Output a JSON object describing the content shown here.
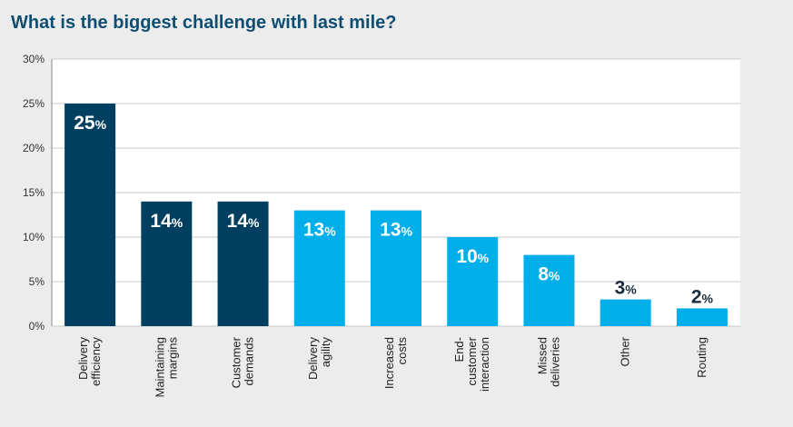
{
  "title": "What is the biggest challenge with last mile?",
  "colors": {
    "dark": "#003f5f",
    "light": "#00aeea",
    "inside_text": "#ffffff",
    "outside_text": "#1a2b3c",
    "plot_bg": "#ffffff",
    "grid": "#c8c8c8"
  },
  "chart_data": {
    "type": "bar",
    "title": "What is the biggest challenge with last mile?",
    "xlabel": "",
    "ylabel": "",
    "ylim": [
      0,
      30
    ],
    "yticks": [
      "0%",
      "5%",
      "10%",
      "15%",
      "20%",
      "25%",
      "30%"
    ],
    "grid": true,
    "categories": [
      [
        "Delivery",
        "efficiency"
      ],
      [
        "Maintaining",
        "margins"
      ],
      [
        "Customer",
        "demands"
      ],
      [
        "Delivery",
        "agility"
      ],
      [
        "Increased",
        "costs"
      ],
      [
        "End-",
        "customer",
        "interaction"
      ],
      [
        "Missed",
        "deliveries"
      ],
      [
        "Other"
      ],
      [
        "Routing"
      ]
    ],
    "values": [
      25,
      14,
      14,
      13,
      13,
      10,
      8,
      3,
      2
    ],
    "value_labels": [
      "25",
      "14",
      "14",
      "13",
      "13",
      "10",
      "8",
      "3",
      "2"
    ],
    "value_unit": "%",
    "bar_colors": [
      "dark",
      "dark",
      "dark",
      "light",
      "light",
      "light",
      "light",
      "light",
      "light"
    ]
  }
}
